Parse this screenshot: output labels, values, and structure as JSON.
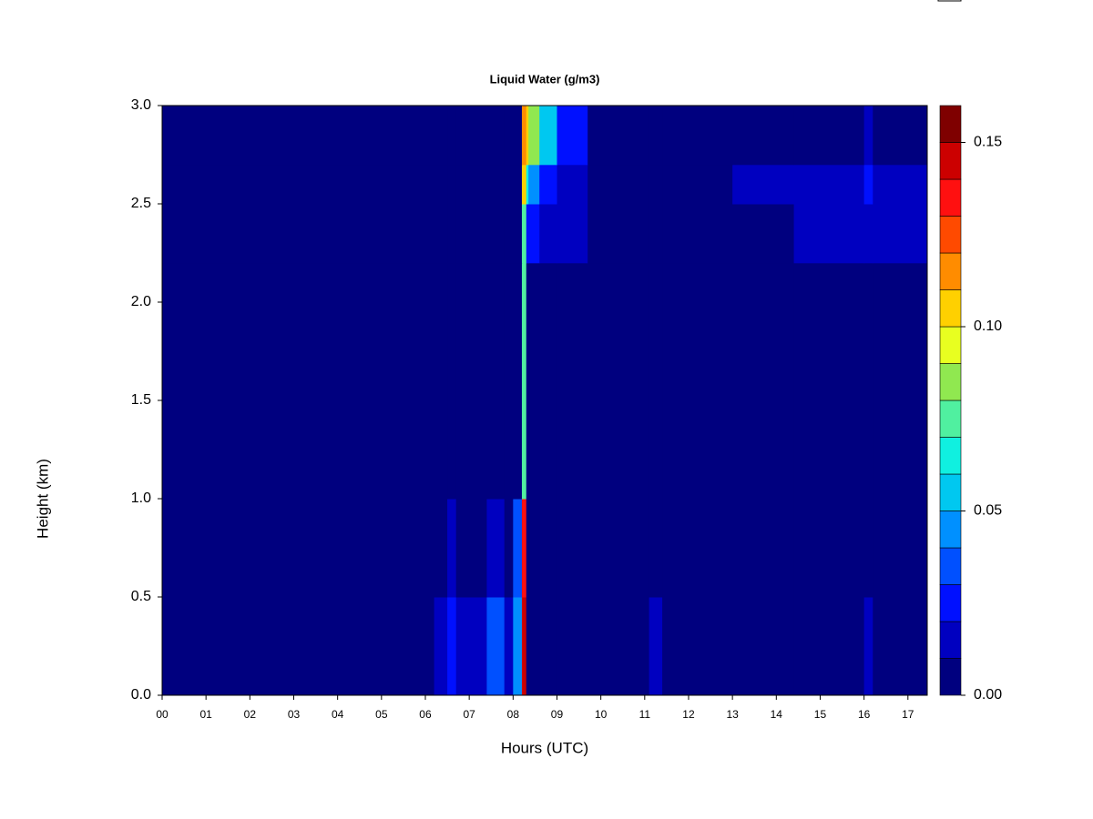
{
  "chart_data": {
    "type": "heatmap",
    "title": "Liquid Water (g/m3)",
    "x_label": "Hours (UTC)",
    "y_label": "Height (km)",
    "x_edges": [
      0,
      6.2,
      6.5,
      6.7,
      7.4,
      7.8,
      8.0,
      8.2,
      8.3,
      8.35,
      8.6,
      9.0,
      9.7,
      11.1,
      11.4,
      13.0,
      14.4,
      16.0,
      16.2,
      17.44
    ],
    "y_edges": [
      0,
      0.5,
      1.0,
      2.2,
      2.5,
      2.7,
      3.0
    ],
    "z": [
      [
        0.005,
        0.015,
        0.02,
        0.012,
        0.03,
        0.015,
        0.04,
        0.14,
        0.005,
        0.005,
        0.005,
        0.005,
        0.005,
        0.015,
        0.005,
        0.005,
        0.005,
        0.012,
        0.005
      ],
      [
        0.005,
        0.005,
        0.01,
        0.008,
        0.015,
        0.008,
        0.03,
        0.13,
        0.005,
        0.005,
        0.005,
        0.005,
        0.005,
        0.005,
        0.005,
        0.005,
        0.005,
        0.005,
        0.005
      ],
      [
        0.005,
        0.005,
        0.005,
        0.005,
        0.005,
        0.005,
        0.005,
        0.07,
        0.005,
        0.005,
        0.005,
        0.005,
        0.005,
        0.005,
        0.005,
        0.005,
        0.005,
        0.005,
        0.005
      ],
      [
        0.005,
        0.005,
        0.005,
        0.005,
        0.005,
        0.005,
        0.005,
        0.07,
        0.02,
        0.02,
        0.015,
        0.012,
        0.005,
        0.005,
        0.005,
        0.005,
        0.015,
        0.015,
        0.015
      ],
      [
        0.005,
        0.005,
        0.005,
        0.005,
        0.005,
        0.005,
        0.005,
        0.1,
        0.06,
        0.04,
        0.025,
        0.015,
        0.005,
        0.005,
        0.005,
        0.015,
        0.015,
        0.02,
        0.015
      ],
      [
        0.005,
        0.005,
        0.005,
        0.005,
        0.005,
        0.005,
        0.005,
        0.11,
        0.1,
        0.08,
        0.05,
        0.025,
        0.005,
        0.005,
        0.005,
        0.005,
        0.005,
        0.012,
        0.005
      ]
    ],
    "xlim": [
      0,
      17.44
    ],
    "ylim": [
      0,
      3
    ],
    "xticks": [
      {
        "value": 0,
        "label": "00"
      },
      {
        "value": 1,
        "label": "01"
      },
      {
        "value": 2,
        "label": "02"
      },
      {
        "value": 3,
        "label": "03"
      },
      {
        "value": 4,
        "label": "04"
      },
      {
        "value": 5,
        "label": "05"
      },
      {
        "value": 6,
        "label": "06"
      },
      {
        "value": 7,
        "label": "07"
      },
      {
        "value": 8,
        "label": "08"
      },
      {
        "value": 9,
        "label": "09"
      },
      10,
      11,
      12,
      13,
      14,
      15,
      16,
      17
    ],
    "yticks": [
      {
        "value": 0,
        "label": "0.0"
      },
      {
        "value": 0.5,
        "label": "0.5"
      },
      {
        "value": 1,
        "label": "1.0"
      },
      {
        "value": 1.5,
        "label": "1.5"
      },
      {
        "value": 2,
        "label": "2.0"
      },
      {
        "value": 2.5,
        "label": "2.5"
      },
      {
        "value": 3,
        "label": "3.0"
      }
    ],
    "levels": [
      0,
      0.01,
      0.02,
      0.03,
      0.04,
      0.05,
      0.06,
      0.07,
      0.08,
      0.09,
      0.1,
      0.11,
      0.12,
      0.13,
      0.14,
      0.15,
      0.16
    ],
    "colors": [
      "#00007F",
      "#0000C0",
      "#0010FF",
      "#0050FF",
      "#0090FF",
      "#00C8F0",
      "#10F0E0",
      "#50F0A0",
      "#90E850",
      "#E8FF20",
      "#FFD000",
      "#FF8C00",
      "#FF4A00",
      "#FF1010",
      "#CC0000",
      "#7F0000"
    ],
    "colorbar_ticks": [
      {
        "value": 0,
        "label": "0.00"
      },
      {
        "value": 0.05,
        "label": "0.05"
      },
      {
        "value": 0.1,
        "label": "0.10"
      },
      {
        "value": 0.15,
        "label": "0.15"
      }
    ]
  }
}
